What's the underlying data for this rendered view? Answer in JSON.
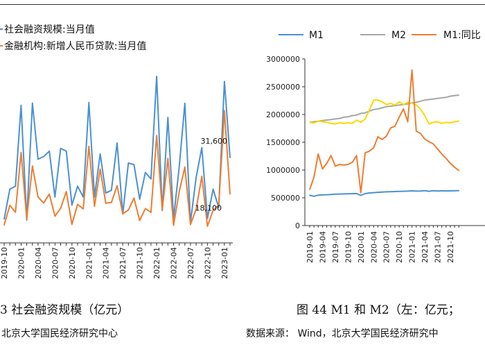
{
  "left_chart": {
    "legend": [
      "社会融资规模:当月值",
      "金融机构:新增人民币贷款:当月值"
    ],
    "annotations": [
      "31,600",
      "18,100"
    ],
    "caption": "3  社会融资规模（亿元）",
    "source": "北京大学国民经济研究中心"
  },
  "right_chart": {
    "legend": [
      "M1",
      "M2",
      "M1:同比"
    ],
    "caption": "图 44 M1 和 M2（左：亿元；",
    "source": "数据来源： Wind，北京大学国民经济研究中"
  },
  "colors": {
    "blue": "#4a90d4",
    "orange": "#ed7d31",
    "gray": "#a6a6a6",
    "yellow": "#ffd700"
  },
  "chart_data": [
    {
      "type": "line",
      "x": [
        "2019-10",
        "2019-11",
        "2019-12",
        "2020-01",
        "2020-02",
        "2020-03",
        "2020-04",
        "2020-05",
        "2020-06",
        "2020-07",
        "2020-08",
        "2020-09",
        "2020-10",
        "2020-11",
        "2020-12",
        "2021-01",
        "2021-02",
        "2021-03",
        "2021-04",
        "2021-05",
        "2021-06",
        "2021-07",
        "2021-08",
        "2021-09",
        "2021-10",
        "2021-11",
        "2021-12",
        "2022-01",
        "2022-02",
        "2022-03",
        "2022-04",
        "2022-05",
        "2022-06",
        "2022-07",
        "2022-08",
        "2022-09",
        "2022-10",
        "2022-11",
        "2022-12",
        "2023-01",
        "2023-02"
      ],
      "xticks": [
        "2019-10",
        "2020-01",
        "2020-04",
        "2020-07",
        "2020-10",
        "2021-01",
        "2021-04",
        "2021-07",
        "2021-10",
        "2022-01",
        "2022-04",
        "2022-07",
        "2022-10",
        "2023-01"
      ],
      "series": [
        {
          "name": "社会融资规模:当月值",
          "values": [
            8800,
            19900,
            21000,
            51000,
            8500,
            51800,
            31000,
            32000,
            34000,
            17000,
            35000,
            34000,
            14000,
            21000,
            17000,
            52000,
            17000,
            33000,
            18500,
            19500,
            37000,
            10700,
            29600,
            29000,
            16200,
            26100,
            23700,
            61700,
            12000,
            46500,
            9100,
            27900,
            51700,
            7600,
            24300,
            35300,
            9100,
            19900,
            13100,
            59800,
            31600
          ]
        },
        {
          "name": "金融机构:新增人民币贷款:当月值",
          "values": [
            6600,
            13900,
            11400,
            33500,
            9000,
            28500,
            17000,
            14800,
            18100,
            9900,
            12800,
            19000,
            6900,
            14300,
            12600,
            35800,
            13600,
            27300,
            14700,
            15000,
            21200,
            10800,
            12200,
            16600,
            8300,
            12700,
            11300,
            39800,
            12300,
            31300,
            6500,
            18900,
            28100,
            6800,
            12500,
            24700,
            6200,
            12100,
            14000,
            49000,
            18100
          ]
        }
      ]
    },
    {
      "type": "line",
      "x": [
        "2019-01",
        "2019-02",
        "2019-03",
        "2019-04",
        "2019-05",
        "2019-06",
        "2019-07",
        "2019-08",
        "2019-09",
        "2019-10",
        "2019-11",
        "2019-12",
        "2020-01",
        "2020-02",
        "2020-03",
        "2020-04",
        "2020-05",
        "2020-06",
        "2020-07",
        "2020-08",
        "2020-09",
        "2020-10",
        "2020-11",
        "2020-12",
        "2021-01",
        "2021-02",
        "2021-03",
        "2021-04",
        "2021-05",
        "2021-06",
        "2021-07",
        "2021-08",
        "2021-09",
        "2021-10",
        "2021-11",
        "2021-12"
      ],
      "xticks": [
        "2019-01",
        "2019-04",
        "2019-07",
        "2019-10",
        "2020-01",
        "2020-04",
        "2020-07",
        "2020-10",
        "2021-01",
        "2021-04",
        "2021-07",
        "2021-10"
      ],
      "ylim": [
        0,
        3000000
      ],
      "yticks": [
        "0",
        "500000",
        "1000000",
        "1500000",
        "2000000",
        "2500000",
        "3000000"
      ],
      "series": [
        {
          "name": "M1",
          "values": [
            545000,
            528000,
            547000,
            552000,
            555000,
            560000,
            566000,
            568000,
            570000,
            573000,
            574000,
            576000,
            545000,
            575000,
            587000,
            593000,
            599000,
            604000,
            607000,
            610000,
            612000,
            615000,
            618000,
            620000,
            625000,
            620000,
            621000,
            628000,
            618000,
            627000,
            622000,
            626000,
            624000,
            625000,
            626000,
            630000
          ]
        },
        {
          "name": "M2",
          "values": [
            1860000,
            1870000,
            1880000,
            1890000,
            1900000,
            1910000,
            1920000,
            1930000,
            1950000,
            1960000,
            1980000,
            1990000,
            2020000,
            2030000,
            2060000,
            2090000,
            2100000,
            2120000,
            2140000,
            2150000,
            2160000,
            2170000,
            2180000,
            2190000,
            2210000,
            2220000,
            2240000,
            2260000,
            2270000,
            2280000,
            2290000,
            2300000,
            2310000,
            2330000,
            2340000,
            2350000
          ]
        },
        {
          "name": "",
          "values": [
            1860000,
            1850000,
            1880000,
            1870000,
            1860000,
            1840000,
            1830000,
            1850000,
            1840000,
            1850000,
            1840000,
            1900000,
            1860000,
            1920000,
            2080000,
            2260000,
            2260000,
            2230000,
            2180000,
            2200000,
            2170000,
            2230000,
            2180000,
            2220000,
            2200000,
            2170000,
            2100000,
            1980000,
            1830000,
            1860000,
            1870000,
            1840000,
            1860000,
            1850000,
            1870000,
            1880000
          ]
        },
        {
          "name": "M1:同比",
          "values": [
            650000,
            870000,
            1290000,
            1020000,
            1120000,
            1260000,
            1070000,
            1100000,
            1090000,
            1100000,
            1140000,
            1260000,
            590000,
            1310000,
            1340000,
            1400000,
            1600000,
            1550000,
            1610000,
            1760000,
            1790000,
            1950000,
            2100000,
            1870000,
            2800000,
            1700000,
            1660000,
            1560000,
            1510000,
            1470000,
            1380000,
            1290000,
            1210000,
            1120000,
            1050000,
            990000
          ]
        }
      ]
    }
  ]
}
